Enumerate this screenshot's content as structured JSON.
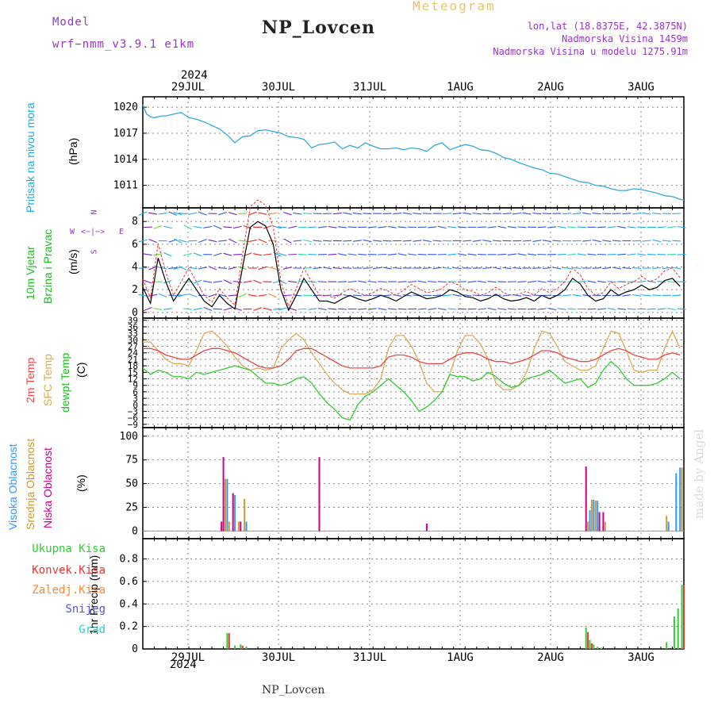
{
  "header": {
    "model_label": "Model",
    "model_value": "wrf−nmm_v3.9.1  e1km",
    "title": "NP_Lovcen",
    "subtitle": "Meteogram",
    "coords": "lon,lat (18.8375E, 42.3875N)",
    "elevation": "Nadmorska Visina 1459m",
    "model_elevation": "Nadmorska Visina u modelu 1275.91m",
    "watermark": "made by Angel",
    "footer": "NP_Lovcen"
  },
  "colors": {
    "pressure": "#33aadd",
    "temp2m": "#ee4444",
    "sfc_temp": "#ddaa55",
    "dewpoint": "#33cc33",
    "high_cloud": "#3399ff",
    "mid_cloud": "#cc9933",
    "low_cloud": "#cc0088",
    "total_precip": "#33cc33",
    "conv_precip": "#ee3333",
    "frozen_precip": "#ff8833",
    "snow": "#5555dd",
    "hail": "#33cccc"
  },
  "x_axis": {
    "year_label": "2024",
    "date_labels": [
      "29JUL",
      "30JUL",
      "31JUL",
      "1AUG",
      "2AUG",
      "3AUG"
    ]
  },
  "chart_data": [
    {
      "type": "line",
      "panel": "pressure",
      "ylabel_main": "Pritisak na nivou mora",
      "unit": "(hPa)",
      "yticks": [
        1011,
        1014,
        1017,
        1020
      ],
      "ylim": [
        1008.4,
        1021.2
      ],
      "xlim": [
        0,
        141
      ],
      "x": [
        0,
        1,
        2,
        3,
        5,
        6,
        8,
        10,
        12,
        14,
        16,
        18,
        20,
        22,
        24,
        26,
        28,
        30,
        32,
        34,
        36,
        38,
        40,
        42,
        44,
        46,
        48,
        50,
        52,
        54,
        56,
        58,
        60,
        62,
        64,
        66,
        68,
        70,
        72,
        74,
        76,
        78,
        80,
        82,
        84,
        86,
        88,
        90,
        92,
        94,
        96,
        98,
        100,
        102,
        104,
        106,
        108,
        110,
        112,
        114,
        116,
        118,
        120,
        122,
        124,
        126,
        128,
        130,
        132,
        134,
        136,
        138,
        140,
        141
      ],
      "series": [
        {
          "name": "",
          "values": [
            1020.3,
            1019.2,
            1018.9,
            1018.8,
            1019.0,
            1019.0,
            1019.2,
            1019.4,
            1018.8,
            1018.6,
            1018.3,
            1017.9,
            1017.5,
            1016.8,
            1015.9,
            1016.6,
            1016.7,
            1017.3,
            1017.4,
            1017.2,
            1017.0,
            1016.6,
            1016.5,
            1016.3,
            1015.3,
            1015.7,
            1015.8,
            1016.0,
            1015.2,
            1015.6,
            1015.3,
            1015.9,
            1015.5,
            1015.2,
            1015.2,
            1015.3,
            1015.1,
            1015.3,
            1015.2,
            1014.9,
            1015.6,
            1015.9,
            1015.1,
            1015.4,
            1015.7,
            1015.5,
            1015.1,
            1015.0,
            1014.7,
            1014.2,
            1014.0,
            1013.6,
            1013.3,
            1013.0,
            1012.8,
            1012.4,
            1012.3,
            1012.0,
            1011.7,
            1011.4,
            1011.3,
            1011.0,
            1010.9,
            1010.6,
            1010.4,
            1010.4,
            1010.6,
            1010.5,
            1010.3,
            1010.1,
            1009.8,
            1009.7,
            1009.4,
            1009.3
          ]
        }
      ]
    },
    {
      "type": "line",
      "panel": "wind",
      "ylabel_main": "10m Vjetar",
      "ylabel_sub": "Brzina i Pravac",
      "unit": "(m/s)",
      "compass": {
        "n": "N",
        "w": "W",
        "e": "E",
        "s": "S"
      },
      "yticks": [
        0,
        2,
        4,
        6,
        8
      ],
      "ylim": [
        -0.5,
        9.2
      ],
      "xlim": [
        0,
        141
      ],
      "x": [
        0,
        2,
        4,
        6,
        8,
        10,
        12,
        14,
        16,
        18,
        20,
        22,
        24,
        26,
        28,
        30,
        32,
        34,
        36,
        38,
        40,
        42,
        44,
        46,
        48,
        50,
        52,
        54,
        56,
        58,
        60,
        62,
        64,
        66,
        68,
        70,
        72,
        74,
        76,
        78,
        80,
        82,
        84,
        86,
        88,
        90,
        92,
        94,
        96,
        98,
        100,
        102,
        104,
        106,
        108,
        110,
        112,
        114,
        116,
        118,
        120,
        122,
        124,
        126,
        128,
        130,
        132,
        134,
        136,
        138,
        140
      ],
      "series": [
        {
          "name": "",
          "values": [
            2.2,
            0.8,
            4.8,
            2.7,
            1.0,
            2.0,
            3.0,
            2.0,
            1.0,
            0.5,
            1.5,
            0.8,
            0.3,
            4.0,
            7.5,
            8.0,
            7.6,
            6.0,
            2.0,
            0.2,
            1.5,
            3.0,
            2.0,
            1.0,
            1.0,
            0.8,
            1.2,
            1.5,
            1.2,
            1.0,
            1.2,
            1.5,
            1.3,
            1.0,
            1.4,
            1.8,
            1.5,
            1.2,
            1.3,
            1.5,
            2.0,
            1.8,
            1.4,
            1.3,
            1.0,
            1.2,
            1.6,
            1.2,
            1.0,
            1.1,
            1.3,
            1.0,
            1.5,
            1.2,
            1.5,
            2.0,
            3.0,
            2.5,
            1.5,
            1.0,
            1.2,
            2.0,
            1.5,
            1.8,
            2.0,
            2.4,
            2.0,
            2.2,
            2.8,
            3.0,
            2.3
          ]
        }
      ]
    },
    {
      "type": "line",
      "panel": "temperature",
      "ylabels": [
        "2m Temp",
        "SFC Temp",
        "dewpt Temp"
      ],
      "unit": "(C)",
      "yticks": [
        -9,
        -6,
        -3,
        0,
        3,
        6,
        9,
        12,
        15,
        18,
        21,
        24,
        27,
        30,
        33,
        36,
        39
      ],
      "ylim": [
        -10.5,
        40
      ],
      "xlim": [
        0,
        141
      ],
      "x": [
        0,
        2,
        4,
        6,
        8,
        10,
        12,
        14,
        16,
        18,
        20,
        22,
        24,
        26,
        28,
        30,
        32,
        34,
        36,
        38,
        40,
        42,
        44,
        46,
        48,
        50,
        52,
        54,
        56,
        58,
        60,
        62,
        64,
        66,
        68,
        70,
        72,
        74,
        76,
        78,
        80,
        82,
        84,
        86,
        88,
        90,
        92,
        94,
        96,
        98,
        100,
        102,
        104,
        106,
        108,
        110,
        112,
        114,
        116,
        118,
        120,
        122,
        124,
        126,
        128,
        130,
        132,
        134,
        136,
        138,
        140
      ],
      "series": [
        {
          "name": "2m Temp",
          "values": [
            26,
            26,
            25,
            23,
            22,
            21,
            21,
            23,
            25,
            26,
            26,
            25,
            24,
            22,
            20,
            18,
            17,
            17,
            18,
            21,
            25,
            26,
            26,
            24,
            22,
            20,
            18,
            17,
            17,
            17,
            17,
            18,
            22,
            23,
            23,
            22,
            20,
            19,
            19,
            19,
            21,
            23,
            24,
            24,
            23,
            21,
            20,
            20,
            19,
            20,
            21,
            23,
            25,
            25,
            24,
            22,
            21,
            20,
            20,
            21,
            23,
            25,
            26,
            25,
            23,
            22,
            21,
            21,
            23,
            24,
            23
          ]
        },
        {
          "name": "SFC Temp",
          "values": [
            29,
            29,
            25,
            21,
            19,
            19,
            18,
            25,
            33,
            34,
            31,
            27,
            22,
            18,
            16,
            17,
            16,
            17,
            26,
            30,
            33,
            30,
            24,
            19,
            14,
            10,
            7,
            5,
            5,
            5,
            7,
            12,
            26,
            32,
            32,
            27,
            20,
            10,
            6,
            6,
            14,
            25,
            32,
            32,
            28,
            21,
            10,
            7,
            7,
            9,
            15,
            26,
            34,
            33,
            27,
            20,
            18,
            16,
            16,
            18,
            26,
            34,
            33,
            25,
            16,
            15,
            16,
            16,
            26,
            34,
            26
          ]
        },
        {
          "name": "dewpt Temp",
          "values": [
            17,
            14,
            16,
            15,
            13,
            13,
            12,
            15,
            14,
            15,
            16,
            17,
            18,
            17,
            16,
            13,
            10,
            10,
            9,
            10,
            12,
            13,
            10,
            5,
            1,
            -2,
            -6,
            -7,
            0,
            4,
            6,
            9,
            12,
            9,
            6,
            2,
            -3,
            -1,
            2,
            6,
            14,
            13,
            13,
            11,
            12,
            15,
            13,
            10,
            8,
            9,
            12,
            13,
            14,
            16,
            13,
            10,
            11,
            12,
            8,
            10,
            16,
            20,
            17,
            12,
            9,
            9,
            9,
            10,
            12,
            15,
            12
          ]
        }
      ]
    },
    {
      "type": "bar",
      "panel": "cloud",
      "ylabels": [
        "Visoka Oblacnost",
        "Srednja Oblacnost",
        "Niska Oblacnost"
      ],
      "unit": "(%)",
      "yticks": [
        0,
        25,
        50,
        75,
        100
      ],
      "ylim": [
        -8,
        109
      ],
      "xlim": [
        0,
        141
      ],
      "bars": [
        {
          "series": "Niska Oblacnost",
          "x": 20.5,
          "value": 10
        },
        {
          "series": "Niska Oblacnost",
          "x": 21.0,
          "value": 78
        },
        {
          "series": "Srednja Oblacnost",
          "x": 21.5,
          "value": 55
        },
        {
          "series": "Visoka Oblacnost",
          "x": 22.0,
          "value": 55
        },
        {
          "series": "Srednja Oblacnost",
          "x": 22.5,
          "value": 10
        },
        {
          "series": "Niska Oblacnost",
          "x": 23.5,
          "value": 40
        },
        {
          "series": "Visoka Oblacnost",
          "x": 24.0,
          "value": 38
        },
        {
          "series": "Srednja Oblacnost",
          "x": 25.0,
          "value": 10
        },
        {
          "series": "Niska Oblacnost",
          "x": 25.5,
          "value": 10
        },
        {
          "series": "Srednja Oblacnost",
          "x": 26.5,
          "value": 34
        },
        {
          "series": "Visoka Oblacnost",
          "x": 27.0,
          "value": 10
        },
        {
          "series": "Niska Oblacnost",
          "x": 46.0,
          "value": 78
        },
        {
          "series": "Niska Oblacnost",
          "x": 74.0,
          "value": 8
        },
        {
          "series": "Niska Oblacnost",
          "x": 115.5,
          "value": 68
        },
        {
          "series": "Srednja Oblacnost",
          "x": 116.0,
          "value": 10
        },
        {
          "series": "Visoka Oblacnost",
          "x": 116.5,
          "value": 22
        },
        {
          "series": "Srednja Oblacnost",
          "x": 117.0,
          "value": 33
        },
        {
          "series": "Visoka Oblacnost",
          "x": 117.5,
          "value": 33
        },
        {
          "series": "Srednja Oblacnost",
          "x": 118.0,
          "value": 32
        },
        {
          "series": "Visoka Oblacnost",
          "x": 118.5,
          "value": 32
        },
        {
          "series": "Niska Oblacnost",
          "x": 119.0,
          "value": 20
        },
        {
          "series": "Niska Oblacnost",
          "x": 120.0,
          "value": 20
        },
        {
          "series": "Srednja Oblacnost",
          "x": 120.5,
          "value": 10
        },
        {
          "series": "Srednja Oblacnost",
          "x": 136.5,
          "value": 16
        },
        {
          "series": "Visoka Oblacnost",
          "x": 137.0,
          "value": 10
        },
        {
          "series": "Visoka Oblacnost",
          "x": 139.0,
          "value": 61
        },
        {
          "series": "Visoka Oblacnost",
          "x": 140.0,
          "value": 67
        },
        {
          "series": "Srednja Oblacnost",
          "x": 140.5,
          "value": 67
        }
      ]
    },
    {
      "type": "bar",
      "panel": "precip",
      "ylabel_main": "1hr Precip (mm)",
      "legend": [
        "Ukupna Kisa",
        "Konvek.Kisa",
        "Zaledj.Kisa",
        "Snijeg",
        "Grad"
      ],
      "yticks": [
        0,
        0.2,
        0.4,
        0.6,
        0.8
      ],
      "ylim": [
        0,
        0.98
      ],
      "xlim": [
        0,
        141
      ],
      "bars": [
        {
          "series": "Ukupna Kisa",
          "x": 22.0,
          "value": 0.14
        },
        {
          "series": "Konvek.Kisa",
          "x": 22.5,
          "value": 0.14
        },
        {
          "series": "Ukupna Kisa",
          "x": 24.0,
          "value": 0.03
        },
        {
          "series": "Ukupna Kisa",
          "x": 25.5,
          "value": 0.04
        },
        {
          "series": "Konvek.Kisa",
          "x": 26.0,
          "value": 0.03
        },
        {
          "series": "Ukupna Kisa",
          "x": 27.0,
          "value": 0.02
        },
        {
          "series": "Ukupna Kisa",
          "x": 115.5,
          "value": 0.19
        },
        {
          "series": "Konvek.Kisa",
          "x": 116.0,
          "value": 0.15
        },
        {
          "series": "Ukupna Kisa",
          "x": 116.5,
          "value": 0.08
        },
        {
          "series": "Konvek.Kisa",
          "x": 117.0,
          "value": 0.05
        },
        {
          "series": "Ukupna Kisa",
          "x": 117.5,
          "value": 0.04
        },
        {
          "series": "Ukupna Kisa",
          "x": 118.5,
          "value": 0.02
        },
        {
          "series": "Ukupna Kisa",
          "x": 119.5,
          "value": 0.01
        },
        {
          "series": "Ukupna Kisa",
          "x": 136.5,
          "value": 0.06
        },
        {
          "series": "Ukupna Kisa",
          "x": 138.5,
          "value": 0.29
        },
        {
          "series": "Ukupna Kisa",
          "x": 139.5,
          "value": 0.36
        },
        {
          "series": "Ukupna Kisa",
          "x": 140.5,
          "value": 0.57
        },
        {
          "series": "Konvek.Kisa",
          "x": 141.0,
          "value": 0.57
        }
      ]
    }
  ]
}
